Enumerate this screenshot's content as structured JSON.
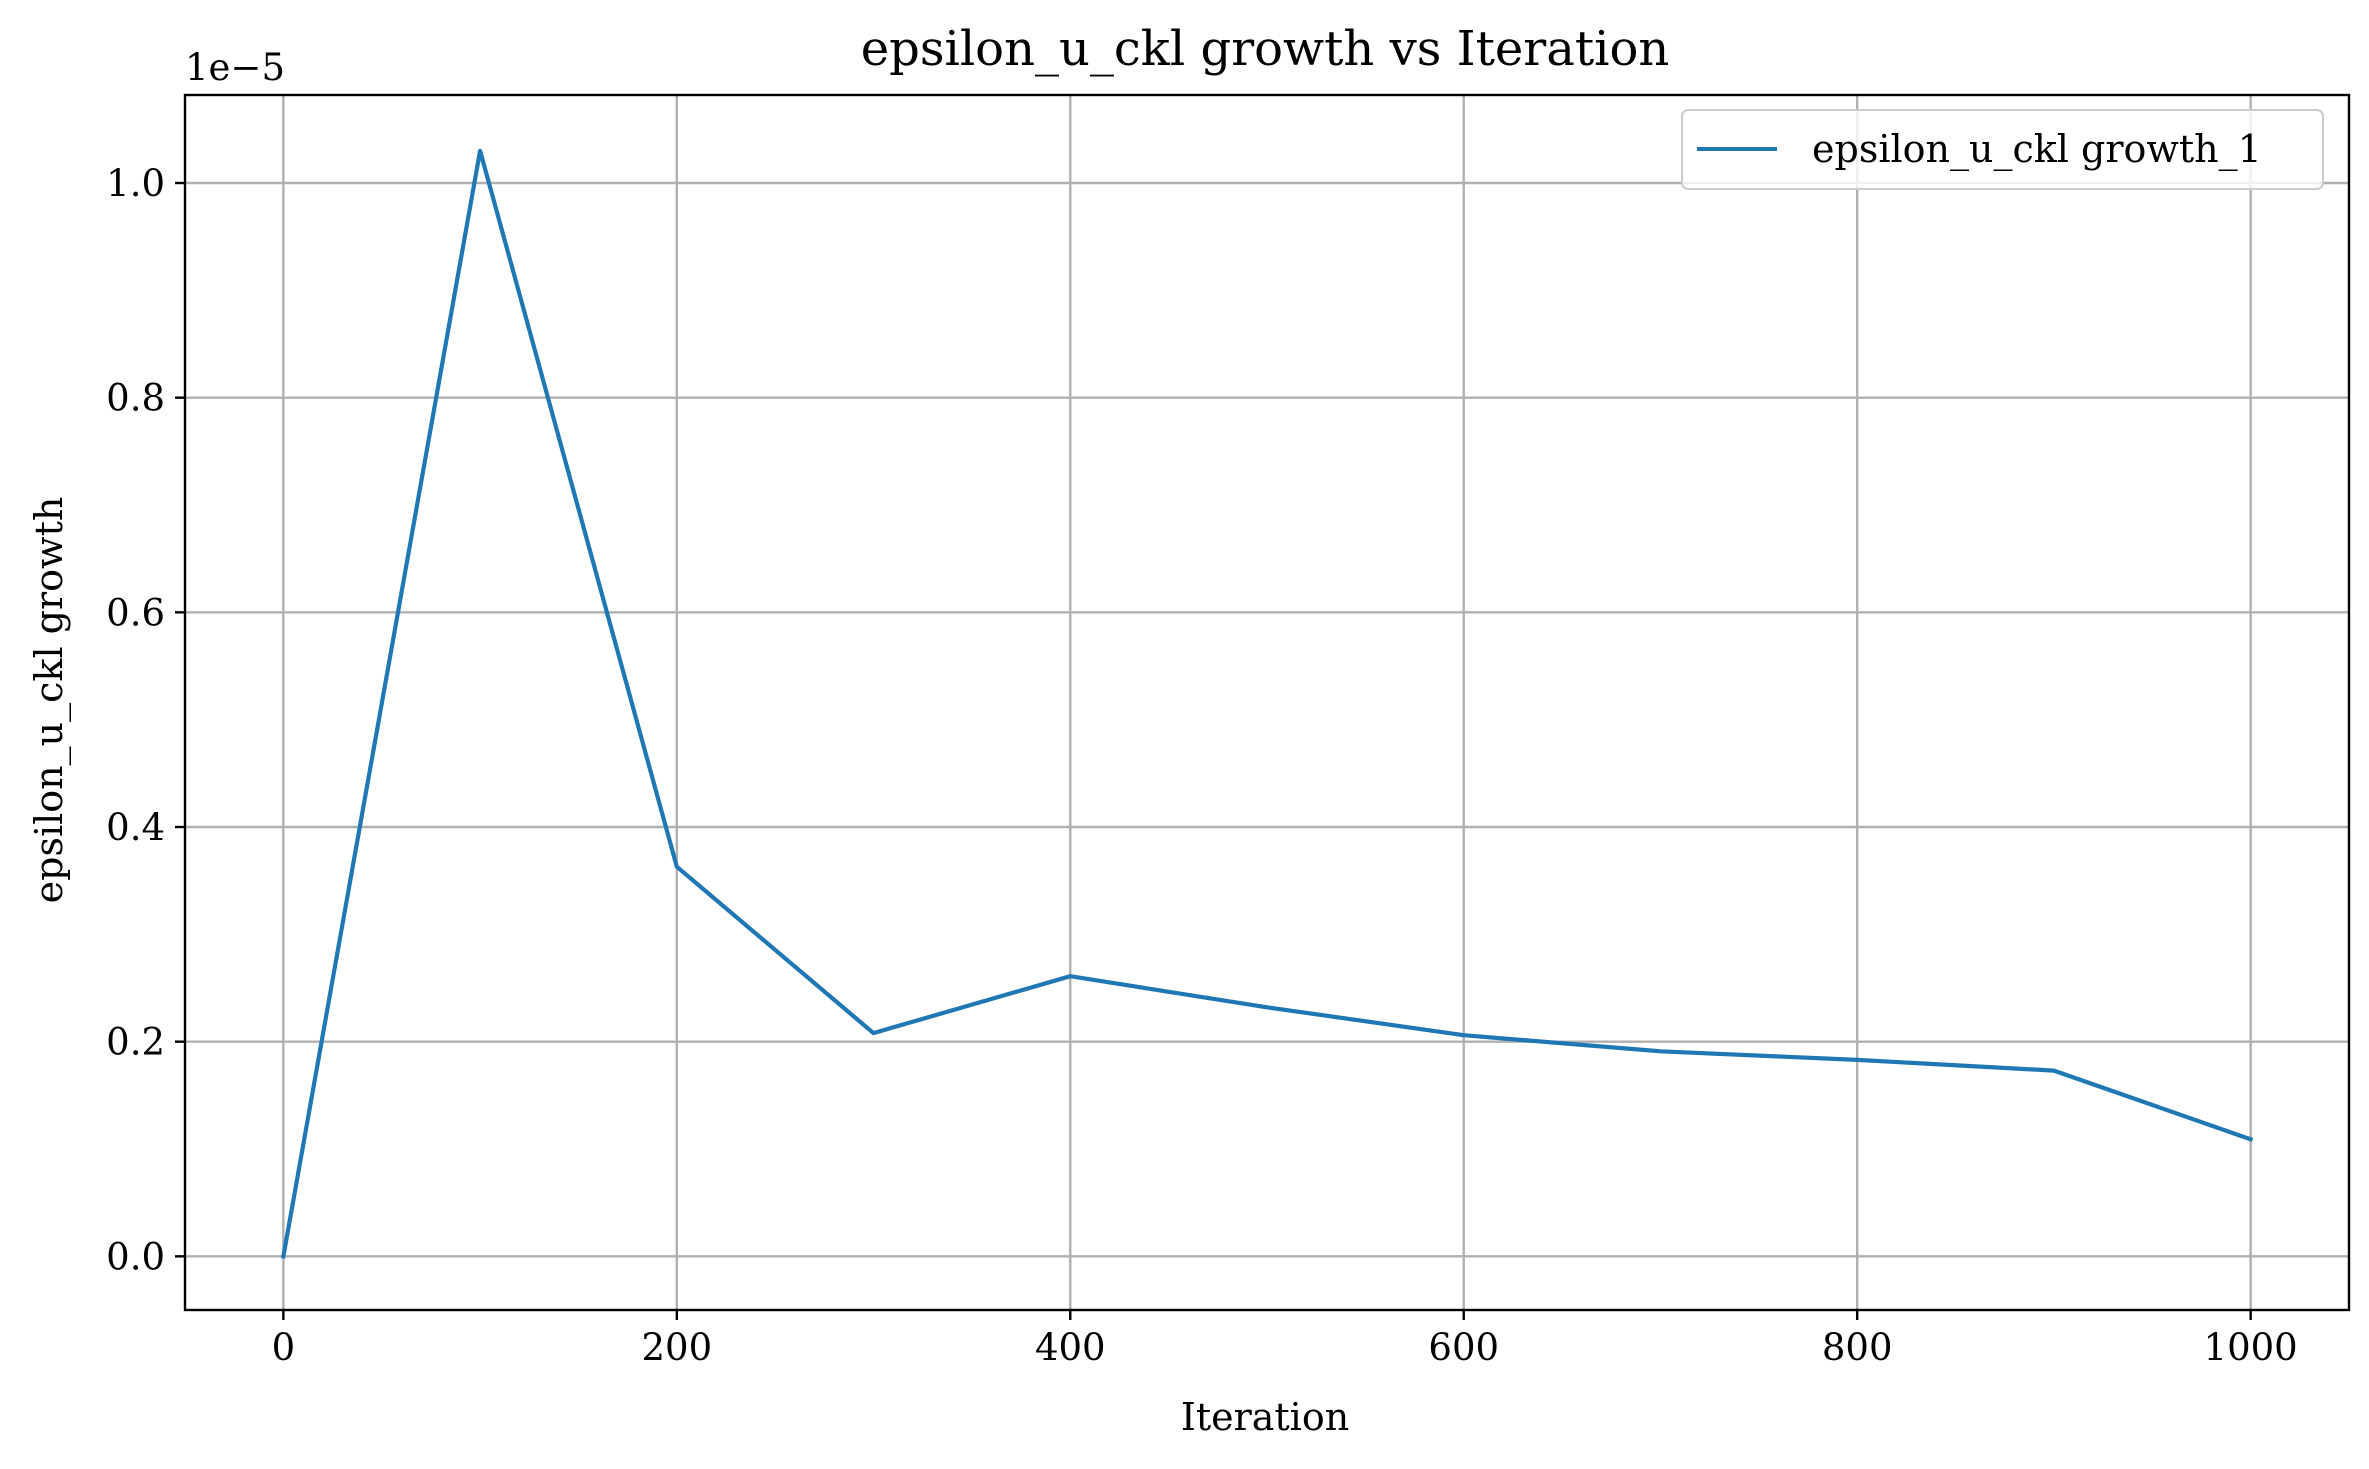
{
  "chart_data": {
    "type": "line",
    "title": "epsilon_u_ckl growth vs Iteration",
    "xlabel": "Iteration",
    "ylabel": "epsilon_u_ckl growth",
    "y_offset_label": "1e−5",
    "xlim": [
      -50,
      1050
    ],
    "ylim": [
      -0.05,
      1.082
    ],
    "y_scale_exponent": -5,
    "x_ticks": [
      0,
      200,
      400,
      600,
      800,
      1000
    ],
    "x_tick_labels": [
      "0",
      "200",
      "400",
      "600",
      "800",
      "1000"
    ],
    "y_ticks": [
      0.0,
      0.2,
      0.4,
      0.6,
      0.8,
      1.0
    ],
    "y_tick_labels": [
      "0.0",
      "0.2",
      "0.4",
      "0.6",
      "0.8",
      "1.0"
    ],
    "grid": true,
    "legend_position": "top-right",
    "series": [
      {
        "name": "epsilon_u_ckl growth_1",
        "color": "#1f77b4",
        "x": [
          0,
          100,
          200,
          300,
          400,
          500,
          600,
          700,
          800,
          900,
          1000
        ],
        "y": [
          0.0,
          1.03,
          0.363,
          0.208,
          0.261,
          0.232,
          0.206,
          0.191,
          0.183,
          0.173,
          0.109
        ]
      }
    ]
  }
}
